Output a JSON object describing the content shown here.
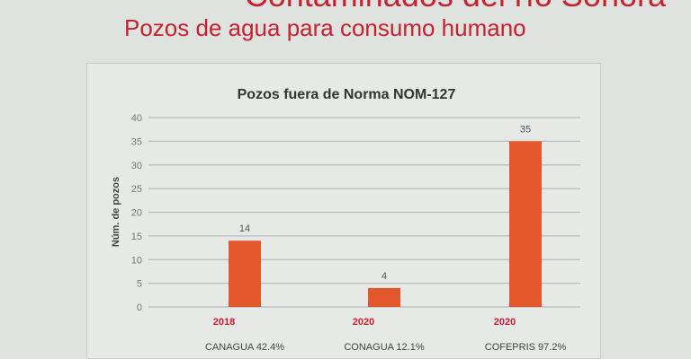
{
  "slide": {
    "heading": "Contaminados del río Sonora",
    "subheading": "Pozos de agua para consumo humano"
  },
  "chart_data": {
    "type": "bar",
    "title": "Pozos fuera de Norma NOM-127",
    "ylabel": "Núm. de pozos",
    "xlabel": "",
    "ylim": [
      0,
      40
    ],
    "yticks": [
      0,
      5,
      10,
      15,
      20,
      25,
      30,
      35,
      40
    ],
    "grid": true,
    "categories": [
      "2018",
      "2020",
      "2020"
    ],
    "sublabels": [
      "CANAGUA 42.4%",
      "CONAGUA 12.1%",
      "COFEPRIS 97.2%"
    ],
    "values": [
      14,
      4,
      35
    ],
    "data_labels": [
      "14",
      "4",
      "35"
    ],
    "colors": {
      "bar": "#e2572b",
      "category_label": "#c8202f",
      "title": "#333333"
    }
  }
}
